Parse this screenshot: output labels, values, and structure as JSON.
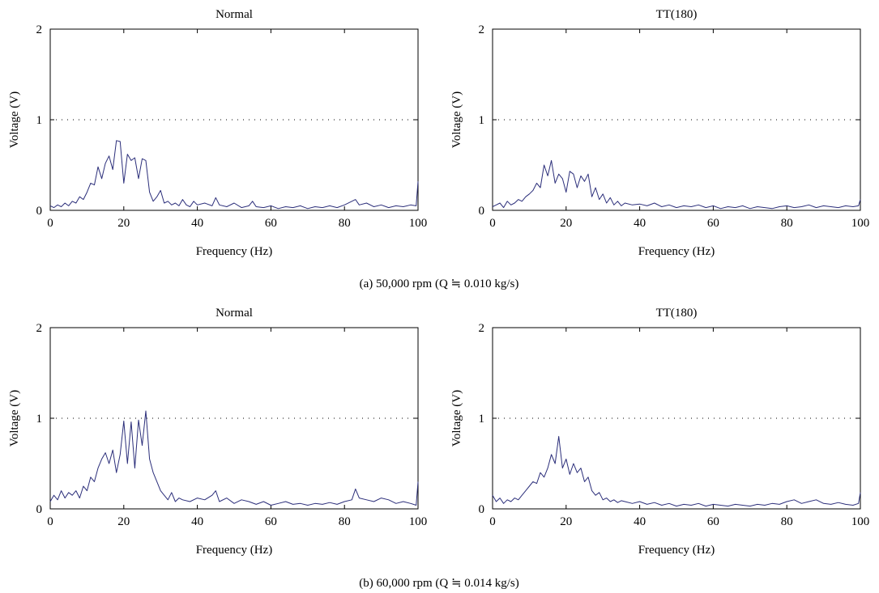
{
  "chart_data": [
    {
      "type": "line",
      "title": "Normal",
      "xlabel": "Frequency (Hz)",
      "ylabel": "Voltage (V)",
      "xlim": [
        0,
        100
      ],
      "ylim": [
        0,
        2
      ],
      "xticks": [
        "0",
        "20",
        "40",
        "60",
        "80",
        "100"
      ],
      "yticks": [
        "0",
        "1",
        "2"
      ],
      "gridlines_y": [
        1
      ],
      "series": [
        {
          "color": "#2b2e7a",
          "x": [
            0,
            1,
            2,
            3,
            4,
            5,
            6,
            7,
            8,
            9,
            10,
            11,
            12,
            13,
            14,
            15,
            16,
            17,
            18,
            19,
            20,
            21,
            22,
            23,
            24,
            25,
            26,
            27,
            28,
            29,
            30,
            31,
            32,
            33,
            34,
            35,
            36,
            37,
            38,
            39,
            40,
            42,
            44,
            45,
            46,
            48,
            50,
            52,
            54,
            55,
            56,
            58,
            60,
            62,
            64,
            66,
            68,
            70,
            72,
            74,
            76,
            78,
            80,
            82,
            83,
            84,
            86,
            88,
            90,
            92,
            94,
            96,
            98,
            99.5,
            100
          ],
          "y": [
            0.05,
            0.03,
            0.06,
            0.04,
            0.08,
            0.05,
            0.1,
            0.08,
            0.15,
            0.12,
            0.2,
            0.3,
            0.28,
            0.48,
            0.35,
            0.52,
            0.6,
            0.45,
            0.77,
            0.76,
            0.3,
            0.62,
            0.55,
            0.58,
            0.35,
            0.57,
            0.55,
            0.2,
            0.1,
            0.15,
            0.22,
            0.08,
            0.1,
            0.06,
            0.08,
            0.05,
            0.12,
            0.06,
            0.04,
            0.1,
            0.06,
            0.08,
            0.05,
            0.14,
            0.06,
            0.04,
            0.08,
            0.03,
            0.05,
            0.1,
            0.04,
            0.03,
            0.05,
            0.02,
            0.04,
            0.03,
            0.05,
            0.02,
            0.04,
            0.03,
            0.05,
            0.03,
            0.06,
            0.1,
            0.12,
            0.06,
            0.08,
            0.04,
            0.06,
            0.03,
            0.05,
            0.04,
            0.06,
            0.05,
            0.32
          ]
        }
      ]
    },
    {
      "type": "line",
      "title": "TT(180)",
      "xlabel": "Frequency (Hz)",
      "ylabel": "Voltage (V)",
      "xlim": [
        0,
        100
      ],
      "ylim": [
        0,
        2
      ],
      "xticks": [
        "0",
        "20",
        "40",
        "60",
        "80",
        "100"
      ],
      "yticks": [
        "0",
        "1",
        "2"
      ],
      "gridlines_y": [
        1
      ],
      "series": [
        {
          "color": "#2b2e7a",
          "x": [
            0,
            1,
            2,
            3,
            4,
            5,
            6,
            7,
            8,
            9,
            10,
            11,
            12,
            13,
            14,
            15,
            16,
            17,
            18,
            19,
            20,
            21,
            22,
            23,
            24,
            25,
            26,
            27,
            28,
            29,
            30,
            31,
            32,
            33,
            34,
            35,
            36,
            38,
            40,
            42,
            44,
            46,
            48,
            50,
            52,
            54,
            56,
            58,
            60,
            62,
            64,
            66,
            68,
            70,
            72,
            74,
            76,
            78,
            80,
            82,
            84,
            86,
            88,
            90,
            92,
            94,
            96,
            98,
            99.5,
            100
          ],
          "y": [
            0.04,
            0.06,
            0.08,
            0.03,
            0.1,
            0.06,
            0.08,
            0.12,
            0.1,
            0.15,
            0.18,
            0.22,
            0.3,
            0.25,
            0.5,
            0.38,
            0.55,
            0.3,
            0.4,
            0.35,
            0.2,
            0.43,
            0.4,
            0.25,
            0.38,
            0.32,
            0.4,
            0.15,
            0.25,
            0.12,
            0.18,
            0.08,
            0.14,
            0.06,
            0.1,
            0.05,
            0.08,
            0.06,
            0.07,
            0.05,
            0.08,
            0.04,
            0.06,
            0.03,
            0.05,
            0.04,
            0.06,
            0.03,
            0.05,
            0.02,
            0.04,
            0.03,
            0.05,
            0.02,
            0.04,
            0.03,
            0.02,
            0.04,
            0.05,
            0.03,
            0.04,
            0.06,
            0.03,
            0.05,
            0.04,
            0.03,
            0.05,
            0.04,
            0.05,
            0.12
          ]
        }
      ]
    },
    {
      "type": "line",
      "title": "Normal",
      "xlabel": "Frequency (Hz)",
      "ylabel": "Voltage (V)",
      "xlim": [
        0,
        100
      ],
      "ylim": [
        0,
        2
      ],
      "xticks": [
        "0",
        "20",
        "40",
        "60",
        "80",
        "100"
      ],
      "yticks": [
        "0",
        "1",
        "2"
      ],
      "gridlines_y": [
        1
      ],
      "series": [
        {
          "color": "#2b2e7a",
          "x": [
            0,
            1,
            2,
            3,
            4,
            5,
            6,
            7,
            8,
            9,
            10,
            11,
            12,
            13,
            14,
            15,
            16,
            17,
            18,
            19,
            20,
            21,
            22,
            23,
            24,
            25,
            26,
            27,
            28,
            29,
            30,
            31,
            32,
            33,
            34,
            35,
            36,
            38,
            40,
            42,
            44,
            45,
            46,
            48,
            50,
            52,
            54,
            56,
            58,
            60,
            62,
            64,
            66,
            68,
            70,
            72,
            74,
            76,
            78,
            80,
            82,
            83,
            84,
            86,
            88,
            90,
            92,
            94,
            96,
            98,
            99.5,
            100
          ],
          "y": [
            0.08,
            0.15,
            0.1,
            0.2,
            0.12,
            0.18,
            0.15,
            0.2,
            0.12,
            0.25,
            0.2,
            0.35,
            0.3,
            0.45,
            0.55,
            0.62,
            0.5,
            0.65,
            0.4,
            0.6,
            0.97,
            0.5,
            0.96,
            0.45,
            0.98,
            0.7,
            1.08,
            0.55,
            0.4,
            0.3,
            0.2,
            0.15,
            0.1,
            0.18,
            0.08,
            0.12,
            0.1,
            0.08,
            0.12,
            0.1,
            0.15,
            0.2,
            0.08,
            0.12,
            0.06,
            0.1,
            0.08,
            0.05,
            0.08,
            0.04,
            0.06,
            0.08,
            0.05,
            0.06,
            0.04,
            0.06,
            0.05,
            0.07,
            0.05,
            0.08,
            0.1,
            0.22,
            0.12,
            0.1,
            0.08,
            0.12,
            0.1,
            0.06,
            0.08,
            0.06,
            0.04,
            0.3
          ]
        }
      ]
    },
    {
      "type": "line",
      "title": "TT(180)",
      "xlabel": "Frequency (Hz)",
      "ylabel": "Voltage (V)",
      "xlim": [
        0,
        100
      ],
      "ylim": [
        0,
        2
      ],
      "xticks": [
        "0",
        "20",
        "40",
        "60",
        "80",
        "100"
      ],
      "yticks": [
        "0",
        "1",
        "2"
      ],
      "gridlines_y": [
        1
      ],
      "series": [
        {
          "color": "#2b2e7a",
          "x": [
            0,
            1,
            2,
            3,
            4,
            5,
            6,
            7,
            8,
            9,
            10,
            11,
            12,
            13,
            14,
            15,
            16,
            17,
            18,
            19,
            20,
            21,
            22,
            23,
            24,
            25,
            26,
            27,
            28,
            29,
            30,
            31,
            32,
            33,
            34,
            35,
            36,
            38,
            40,
            42,
            44,
            46,
            48,
            50,
            52,
            54,
            56,
            58,
            60,
            62,
            64,
            66,
            68,
            70,
            72,
            74,
            76,
            78,
            80,
            82,
            84,
            86,
            88,
            90,
            92,
            94,
            96,
            98,
            99.5,
            100
          ],
          "y": [
            0.15,
            0.08,
            0.12,
            0.06,
            0.1,
            0.08,
            0.12,
            0.1,
            0.15,
            0.2,
            0.25,
            0.3,
            0.28,
            0.4,
            0.35,
            0.45,
            0.6,
            0.5,
            0.8,
            0.45,
            0.55,
            0.38,
            0.5,
            0.4,
            0.45,
            0.3,
            0.35,
            0.2,
            0.15,
            0.18,
            0.1,
            0.12,
            0.08,
            0.1,
            0.07,
            0.09,
            0.08,
            0.06,
            0.08,
            0.05,
            0.07,
            0.04,
            0.06,
            0.03,
            0.05,
            0.04,
            0.06,
            0.03,
            0.05,
            0.04,
            0.03,
            0.05,
            0.04,
            0.03,
            0.05,
            0.04,
            0.06,
            0.05,
            0.08,
            0.1,
            0.06,
            0.08,
            0.1,
            0.06,
            0.05,
            0.07,
            0.05,
            0.04,
            0.06,
            0.18
          ]
        }
      ]
    }
  ],
  "captions": [
    "(a)  50,000 rpm (Q ≒ 0.010 kg/s)",
    "(b)  60,000 rpm (Q ≒ 0.014 kg/s)"
  ]
}
